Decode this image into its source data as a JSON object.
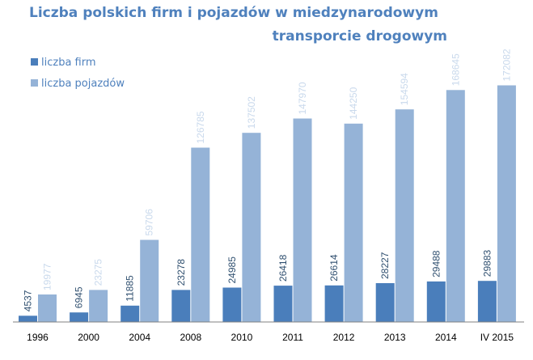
{
  "chart_data": {
    "type": "bar",
    "title": "Liczba polskich firm i pojazdów w miedzynarodowym transporcie drogowym",
    "title_lines": [
      "Liczba polskich firm i pojazdów w miedzynarodowym",
      "transporcie drogowym"
    ],
    "categories": [
      "1996",
      "2000",
      "2004",
      "2008",
      "2010",
      "2011",
      "2012",
      "2013",
      "2014",
      "IV 2015"
    ],
    "series": [
      {
        "name": "liczba firm",
        "color": "#4a7ebb",
        "label_color": "#2f4f6f",
        "values": [
          4537,
          6945,
          11885,
          23278,
          24985,
          26418,
          26614,
          28227,
          29488,
          29883
        ]
      },
      {
        "name": "liczba pojazdów",
        "color": "#95b3d7",
        "label_color": "#c9d9ec",
        "values": [
          19977,
          23275,
          59706,
          126785,
          137502,
          147970,
          144250,
          154594,
          168645,
          172082
        ]
      }
    ],
    "ylim": [
      0,
      200000
    ],
    "grid": false,
    "legend_position": "top-left",
    "xlabel": "",
    "ylabel": ""
  }
}
